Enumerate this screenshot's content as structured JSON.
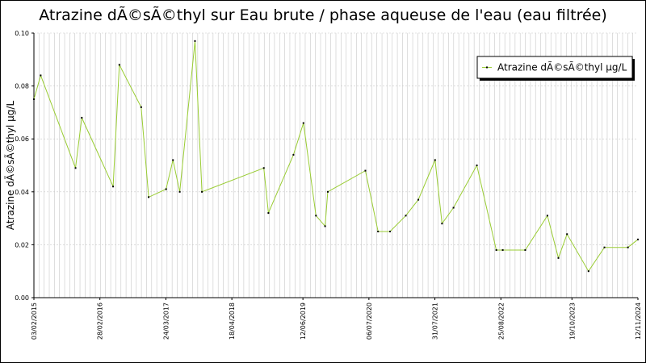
{
  "chart_data": {
    "type": "line",
    "title": "Atrazine dÃ©sÃ©thyl sur Eau brute / phase aqueuse de l'eau (eau filtrée)",
    "ylabel": "Atrazine dÃ©sÃ©thyl µg/L",
    "xlabel": "",
    "xlim": [
      "2015-02-03",
      "2024-11-12"
    ],
    "ylim": [
      0,
      0.1
    ],
    "y_ticks": [
      "0.00",
      "0.02",
      "0.04",
      "0.06",
      "0.08",
      "0.10"
    ],
    "y_tick_values": [
      0,
      0.02,
      0.04,
      0.06,
      0.08,
      0.1
    ],
    "x_tick_labels": [
      "03/02/2015",
      "28/02/2016",
      "24/03/2017",
      "18/04/2018",
      "12/06/2019",
      "06/07/2020",
      "31/07/2021",
      "25/08/2022",
      "19/10/2023",
      "12/11/2024"
    ],
    "x_tick_dates": [
      "2015-02-03",
      "2016-02-28",
      "2017-03-24",
      "2018-04-18",
      "2019-06-12",
      "2020-07-06",
      "2021-07-31",
      "2022-08-25",
      "2023-10-19",
      "2024-11-12"
    ],
    "grid": true,
    "legend_position": "top-right",
    "color": "#99cc33",
    "series": [
      {
        "name": "Atrazine dÃ©sÃ©thyl µg/L",
        "x": [
          "2015-02-03",
          "2015-03-15",
          "2015-10-07",
          "2015-11-13",
          "2016-05-16",
          "2016-06-22",
          "2016-10-29",
          "2016-12-12",
          "2017-03-25",
          "2017-05-05",
          "2017-06-14",
          "2017-09-12",
          "2017-10-23",
          "2018-10-24",
          "2018-11-20",
          "2019-04-17",
          "2019-06-15",
          "2019-08-28",
          "2019-10-21",
          "2019-11-06",
          "2020-06-15",
          "2020-08-29",
          "2020-11-08",
          "2021-02-09",
          "2021-04-24",
          "2021-08-01",
          "2021-09-11",
          "2021-11-18",
          "2022-04-05",
          "2022-07-29",
          "2022-09-05",
          "2023-01-16",
          "2023-05-27",
          "2023-07-31",
          "2023-09-20",
          "2024-01-25",
          "2024-04-28",
          "2024-09-14",
          "2024-11-12"
        ],
        "values": [
          0.075,
          0.084,
          0.049,
          0.068,
          0.042,
          0.088,
          0.072,
          0.038,
          0.041,
          0.052,
          0.04,
          0.097,
          0.04,
          0.049,
          0.032,
          0.054,
          0.066,
          0.031,
          0.027,
          0.04,
          0.048,
          0.025,
          0.025,
          0.031,
          0.037,
          0.052,
          0.028,
          0.034,
          0.05,
          0.018,
          0.018,
          0.018,
          0.031,
          0.015,
          0.024,
          0.01,
          0.019,
          0.019,
          0.022
        ]
      }
    ]
  }
}
